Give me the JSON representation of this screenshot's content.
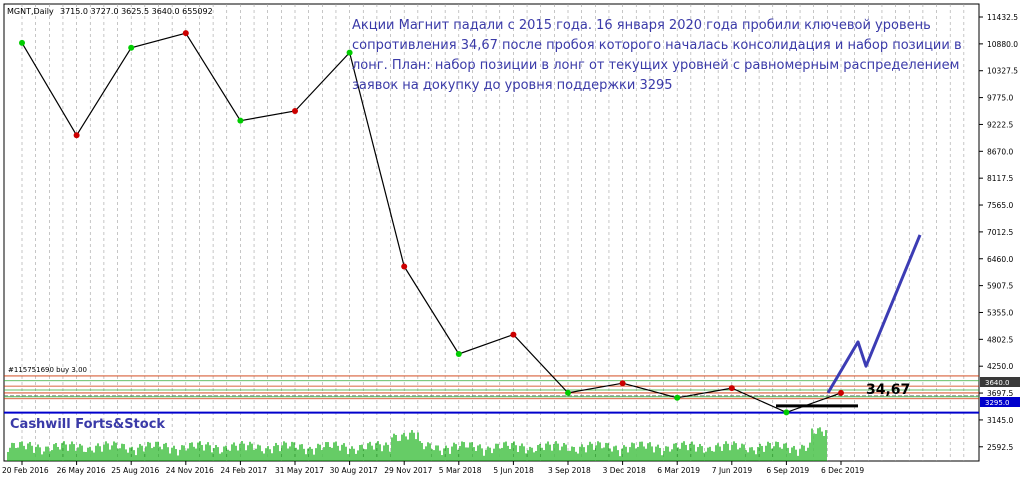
{
  "header": {
    "symbol": "MGNT,Daily",
    "ohlcv": "3715.0 3727.0 3625.5 3640.0 655092"
  },
  "annotation": {
    "lines": [
      "Акции Магнит падали с 2015 года. 16 января 2020 года пробили ключевой уровень",
      "сопротивления 34,67 после пробоя которого началась консолидация и набор позиции в",
      "лонг. План: набор позиции в лонг от текущих уровней с равномерным распределением",
      "заявок на докупку до уровня поддержки 3295"
    ]
  },
  "watermark": "Cashwill Forts&Stock",
  "order_label": "#115751690 buy 3.00",
  "level_label": "34,67",
  "price_labels": {
    "current": "3640.0",
    "support": "3295.0"
  },
  "colors": {
    "annotation": "#3a3aa8",
    "support_line": "#0000cc",
    "plan_arrow": "#3c3cb4",
    "resistance_lines": "#cc3300",
    "green_lines": "#33aa33",
    "volume": "#00aa00",
    "bull_candle": "#00cc00",
    "bear_candle": "#cc0000"
  },
  "chart_data": {
    "type": "line",
    "title": "",
    "symbol": "MGNT",
    "timeframe": "Daily",
    "ylim": [
      2300,
      11700
    ],
    "y_ticks": [
      11432.5,
      10880,
      10327.5,
      9775,
      9222.5,
      8670,
      8117.5,
      7565,
      7012.5,
      6460,
      5907.5,
      5355,
      4802.5,
      4250,
      3697.5,
      3145,
      2592.5
    ],
    "y_tick_labels": [
      "11432.5",
      "10880.0",
      "10327.5",
      "9775.0",
      "9222.5",
      "8670.0",
      "8117.5",
      "7565.0",
      "7012.5",
      "6460.0",
      "5907.5",
      "5355.0",
      "4802.5",
      "4250.0",
      "3697.5",
      "3145.0",
      "2592.5"
    ],
    "x_labels": [
      "20 Feb 2016",
      "26 May 2016",
      "25 Aug 2016",
      "24 Nov 2016",
      "24 Feb 2017",
      "31 May 2017",
      "30 Aug 2017",
      "29 Nov 2017",
      "5 Mar 2018",
      "5 Jun 2018",
      "3 Sep 2018",
      "3 Dec 2018",
      "6 Mar 2019",
      "7 Jun 2019",
      "6 Sep 2019",
      "6 Dec 2019"
    ],
    "series": [
      {
        "x": [
          "20 Feb 2016",
          "26 May 2016",
          "25 Aug 2016",
          "24 Nov 2016",
          "24 Feb 2017",
          "31 May 2017",
          "30 Aug 2017",
          "29 Nov 2017",
          "5 Mar 2018",
          "5 Jun 2018",
          "3 Sep 2018",
          "3 Dec 2018",
          "6 Mar 2019",
          "7 Jun 2019",
          "6 Sep 2019",
          "6 Dec 2019"
        ],
        "values": [
          10900,
          9000,
          10800,
          11100,
          9300,
          9500,
          10700,
          6300,
          4500,
          4900,
          3700,
          3900,
          3600,
          3800,
          3300,
          3700
        ]
      }
    ],
    "horizontal_levels": {
      "support": 3295,
      "current_price": 3640,
      "resistance_zone": [
        3580,
        3620,
        3700,
        3760,
        3840,
        3950,
        4050
      ]
    },
    "plan_path": [
      [
        3700,
        3750
      ],
      [
        4750,
        4250
      ],
      [
        6950
      ]
    ],
    "grid": true
  }
}
